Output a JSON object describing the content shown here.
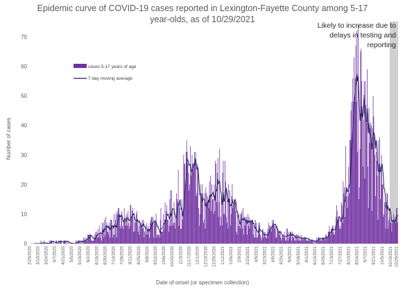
{
  "chart_data": {
    "type": "bar",
    "title_lines": [
      "Epidemic curve of COVID-19 cases reported in Lexington-Fayette County among 5-17",
      "year-olds, as of 10/29/2021"
    ],
    "xlabel": "Date of onset (or specimen collection)",
    "ylabel": "Number of cases",
    "ylim": [
      0,
      70
    ],
    "yticks": [
      0,
      10,
      20,
      30,
      40,
      50,
      60,
      70
    ],
    "x_range": [
      "2020-02-25",
      "2021-10-29"
    ],
    "xtick_labels": [
      "2/25/2020",
      "3/10/2020",
      "3/24/2020",
      "4/7/2020",
      "4/21/2020",
      "5/5/2020",
      "5/19/2020",
      "6/2/2020",
      "6/16/2020",
      "6/30/2020",
      "7/14/2020",
      "7/28/2020",
      "8/11/2020",
      "8/25/2020",
      "9/8/2020",
      "9/22/2020",
      "10/6/2020",
      "10/20/2020",
      "11/3/2020",
      "11/17/2020",
      "12/1/2020",
      "12/15/2020",
      "12/29/2020",
      "1/12/2021",
      "1/26/2021",
      "2/9/2021",
      "2/23/2021",
      "3/9/2021",
      "3/23/2021",
      "4/6/2021",
      "4/20/2021",
      "5/4/2021",
      "5/18/2021",
      "6/1/2021",
      "6/15/2021",
      "6/29/2021",
      "7/13/2021",
      "7/27/2021",
      "8/10/2021",
      "8/24/2021",
      "9/7/2021",
      "9/21/2021",
      "10/5/2021",
      "10/19/2021",
      "10/29/2021"
    ],
    "grid": false,
    "legend_position": "upper-left",
    "series": [
      {
        "name": "cases 5-17 years of age",
        "kind": "bar",
        "color": "#7030a0"
      },
      {
        "name": "7 day moving average",
        "kind": "line",
        "color": "#1f1f5c"
      }
    ],
    "daily_cases_anchors": [
      [
        "2020-02-25",
        0
      ],
      [
        "2020-03-15",
        0.3
      ],
      [
        "2020-04-15",
        0.5
      ],
      [
        "2020-05-05",
        0.2
      ],
      [
        "2020-05-20",
        1
      ],
      [
        "2020-06-05",
        2
      ],
      [
        "2020-06-20",
        4
      ],
      [
        "2020-07-05",
        6
      ],
      [
        "2020-07-20",
        7
      ],
      [
        "2020-08-05",
        8
      ],
      [
        "2020-08-20",
        7
      ],
      [
        "2020-09-05",
        5
      ],
      [
        "2020-09-20",
        6
      ],
      [
        "2020-10-05",
        8
      ],
      [
        "2020-10-20",
        12
      ],
      [
        "2020-11-03",
        17
      ],
      [
        "2020-11-12",
        22
      ],
      [
        "2020-11-20",
        23
      ],
      [
        "2020-11-28",
        17
      ],
      [
        "2020-12-05",
        12
      ],
      [
        "2020-12-15",
        12
      ],
      [
        "2020-12-25",
        17
      ],
      [
        "2021-01-05",
        20
      ],
      [
        "2021-01-12",
        18
      ],
      [
        "2021-01-20",
        14
      ],
      [
        "2021-02-01",
        10
      ],
      [
        "2021-02-15",
        7
      ],
      [
        "2021-03-01",
        5
      ],
      [
        "2021-03-15",
        4
      ],
      [
        "2021-04-01",
        5
      ],
      [
        "2021-04-15",
        4
      ],
      [
        "2021-05-01",
        3
      ],
      [
        "2021-05-15",
        2
      ],
      [
        "2021-06-01",
        1
      ],
      [
        "2021-06-15",
        1
      ],
      [
        "2021-07-01",
        2
      ],
      [
        "2021-07-15",
        6
      ],
      [
        "2021-07-25",
        12
      ],
      [
        "2021-08-05",
        25
      ],
      [
        "2021-08-12",
        33
      ],
      [
        "2021-08-20",
        43
      ],
      [
        "2021-08-27",
        44
      ],
      [
        "2021-09-05",
        38
      ],
      [
        "2021-09-15",
        32
      ],
      [
        "2021-09-25",
        25
      ],
      [
        "2021-10-05",
        16
      ],
      [
        "2021-10-15",
        10
      ],
      [
        "2021-10-29",
        7
      ]
    ],
    "peak_daily_cases": [
      [
        "2020-11-17",
        33
      ],
      [
        "2021-08-17",
        63
      ]
    ],
    "reporting_delay_region": {
      "start": "2021-10-16",
      "end": "2021-10-29",
      "label_lines": [
        "Likely to increase due to",
        "delays in testing and",
        "reporting"
      ]
    }
  }
}
